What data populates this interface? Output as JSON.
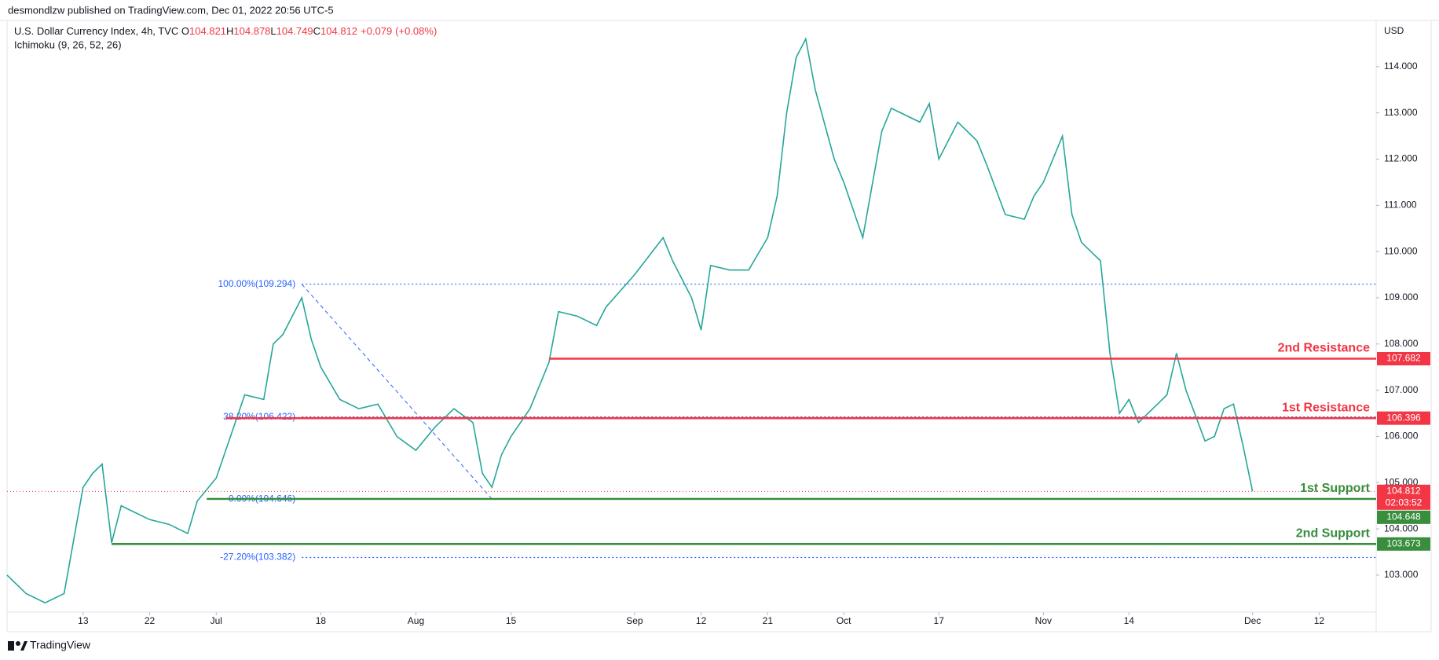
{
  "header": {
    "publisher": "desmondlzw published on TradingView.com, Dec 01, 2022 20:56 UTC-5"
  },
  "chart_data": {
    "type": "line",
    "symbol": "U.S. Dollar Currency Index, 4h, TVC",
    "ohlc": [
      {
        "label": "O",
        "value": 104.821
      },
      {
        "label": "H",
        "value": 104.878
      },
      {
        "label": "L",
        "value": 104.749
      },
      {
        "label": "C",
        "value": 104.812
      }
    ],
    "change": {
      "value": 0.079,
      "label": "+0.079"
    },
    "change_pct": {
      "value": 0.08,
      "label": "(+0.08%)"
    },
    "indicator": "Ichimoku (9, 26, 52, 26)",
    "currency": "USD",
    "color": "#26a69a",
    "x": [
      "2022-06-01",
      "2022-06-03",
      "2022-06-07",
      "2022-06-09",
      "2022-06-13",
      "2022-06-14",
      "2022-06-15",
      "2022-06-16",
      "2022-06-17",
      "2022-06-20",
      "2022-06-22",
      "2022-06-24",
      "2022-06-28",
      "2022-06-29",
      "2022-07-01",
      "2022-07-05",
      "2022-07-06",
      "2022-07-08",
      "2022-07-11",
      "2022-07-12",
      "2022-07-14",
      "2022-07-15",
      "2022-07-18",
      "2022-07-20",
      "2022-07-22",
      "2022-07-26",
      "2022-07-28",
      "2022-08-01",
      "2022-08-03",
      "2022-08-05",
      "2022-08-09",
      "2022-08-10",
      "2022-08-11",
      "2022-08-12",
      "2022-08-15",
      "2022-08-17",
      "2022-08-19",
      "2022-08-22",
      "2022-08-24",
      "2022-08-26",
      "2022-08-29",
      "2022-09-01",
      "2022-09-06",
      "2022-09-07",
      "2022-09-09",
      "2022-09-12",
      "2022-09-13",
      "2022-09-15",
      "2022-09-19",
      "2022-09-21",
      "2022-09-22",
      "2022-09-23",
      "2022-09-26",
      "2022-09-27",
      "2022-09-28",
      "2022-09-30",
      "2022-10-03",
      "2022-10-05",
      "2022-10-07",
      "2022-10-10",
      "2022-10-13",
      "2022-10-14",
      "2022-10-17",
      "2022-10-19",
      "2022-10-21",
      "2022-10-24",
      "2022-10-26",
      "2022-10-28",
      "2022-10-31",
      "2022-11-01",
      "2022-11-03",
      "2022-11-04",
      "2022-11-07",
      "2022-11-09",
      "2022-11-10",
      "2022-11-11",
      "2022-11-14",
      "2022-11-15",
      "2022-11-17",
      "2022-11-18",
      "2022-11-21",
      "2022-11-22",
      "2022-11-24",
      "2022-11-25",
      "2022-11-28",
      "2022-11-29",
      "2022-11-30",
      "2022-12-01"
    ],
    "values": [
      103.0,
      102.6,
      102.4,
      102.6,
      104.9,
      105.2,
      105.4,
      103.7,
      104.5,
      104.4,
      104.2,
      104.1,
      103.9,
      104.6,
      105.1,
      106.3,
      106.9,
      106.8,
      108.0,
      108.2,
      109.0,
      108.1,
      107.5,
      106.8,
      106.6,
      106.7,
      106.0,
      105.7,
      106.2,
      106.6,
      106.3,
      105.2,
      104.9,
      105.6,
      106.0,
      106.6,
      107.6,
      108.7,
      108.6,
      108.4,
      108.8,
      109.5,
      110.3,
      109.8,
      109.0,
      108.3,
      109.7,
      109.6,
      109.6,
      110.3,
      111.2,
      113.0,
      114.2,
      114.6,
      113.5,
      112.0,
      111.5,
      110.3,
      112.6,
      113.1,
      112.8,
      113.2,
      112.0,
      112.8,
      112.4,
      111.9,
      110.8,
      110.7,
      111.2,
      111.5,
      112.5,
      110.8,
      110.2,
      109.8,
      107.8,
      106.5,
      106.8,
      106.3,
      106.7,
      106.9,
      107.8,
      107.0,
      105.9,
      106.0,
      106.6,
      106.7,
      105.8,
      104.812
    ],
    "xlim": [
      "2022-06-01",
      "2022-12-20"
    ],
    "xticks": [
      {
        "value": "2022-06-13",
        "label": "13"
      },
      {
        "value": "2022-06-22",
        "label": "22"
      },
      {
        "value": "2022-07-01",
        "label": "Jul"
      },
      {
        "value": "2022-07-18",
        "label": "18"
      },
      {
        "value": "2022-08-01",
        "label": "Aug"
      },
      {
        "value": "2022-08-15",
        "label": "15"
      },
      {
        "value": "2022-09-01",
        "label": "Sep"
      },
      {
        "value": "2022-09-12",
        "label": "12"
      },
      {
        "value": "2022-09-21",
        "label": "21"
      },
      {
        "value": "2022-10-03",
        "label": "Oct"
      },
      {
        "value": "2022-10-17",
        "label": "17"
      },
      {
        "value": "2022-11-01",
        "label": "Nov"
      },
      {
        "value": "2022-11-14",
        "label": "14"
      },
      {
        "value": "2022-12-01",
        "label": "Dec"
      },
      {
        "value": "2022-12-12",
        "label": "12"
      }
    ],
    "ylim": [
      102.2,
      115.0
    ],
    "yticks": [
      {
        "value": 103,
        "label": "103.000"
      },
      {
        "value": 104,
        "label": "104.000"
      },
      {
        "value": 105,
        "label": "105.000"
      },
      {
        "value": 106,
        "label": "106.000"
      },
      {
        "value": 107,
        "label": "107.000"
      },
      {
        "value": 108,
        "label": "108.000"
      },
      {
        "value": 109,
        "label": "109.000"
      },
      {
        "value": 110,
        "label": "110.000"
      },
      {
        "value": 111,
        "label": "111.000"
      },
      {
        "value": 112,
        "label": "112.000"
      },
      {
        "value": 113,
        "label": "113.000"
      },
      {
        "value": 114,
        "label": "114.000"
      }
    ],
    "grid": false,
    "last_price": 104.812,
    "countdown": "02:03:52",
    "last_color": "#f23645",
    "levels": [
      {
        "name": "2nd Resistance",
        "value": 107.682,
        "from": "2022-08-19",
        "color": "#f23645"
      },
      {
        "name": "1st Resistance",
        "value": 106.396,
        "from": "2022-07-04",
        "color": "#f23645"
      },
      {
        "name": "1st Support",
        "value": 104.648,
        "from": "2022-06-30",
        "color": "#388e3c"
      },
      {
        "name": "2nd Support",
        "value": 103.673,
        "from": "2022-06-16",
        "color": "#388e3c"
      }
    ],
    "fib": [
      {
        "label": "100.00%(109.294)",
        "value": 109.294
      },
      {
        "label": "38.20%(106.422)",
        "value": 106.422
      },
      {
        "label": "0.00%(104.646)",
        "value": 104.646
      },
      {
        "label": "-27.20%(103.382)",
        "value": 103.382
      }
    ],
    "fib_from": "2022-07-14",
    "fib_to": "2022-08-11",
    "fib_color": "#2962ff"
  },
  "footer": {
    "brand": "TradingView"
  }
}
